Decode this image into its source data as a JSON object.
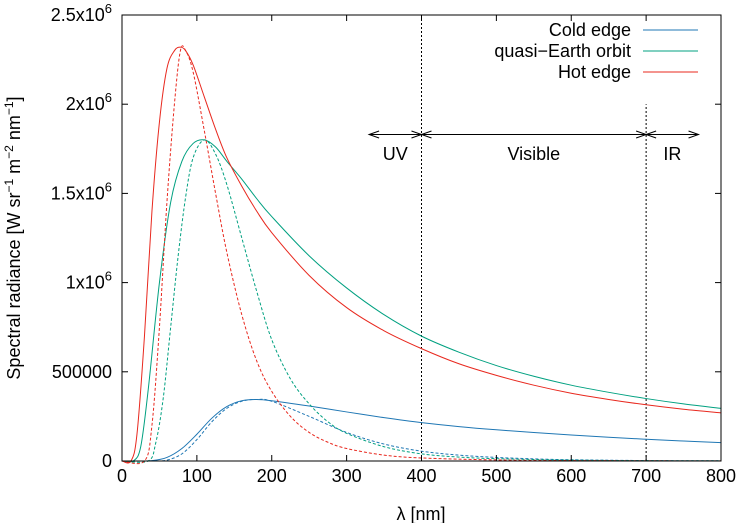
{
  "chart_data": {
    "type": "line",
    "xlabel": "λ [nm]",
    "ylabel": "Spectral radiance [W sr−1 m−2 nm−1]",
    "ylabel_parts": {
      "a": "Spectral radiance [W sr",
      "b": "−1",
      "c": " m",
      "d": "−2",
      "e": " nm",
      "f": "−1",
      "g": "]"
    },
    "xlim": [
      0,
      800
    ],
    "ylim": [
      0,
      2500000
    ],
    "x_ticks": [
      {
        "value": 0,
        "label": "0"
      },
      {
        "value": 100,
        "label": "100"
      },
      {
        "value": 200,
        "label": "200"
      },
      {
        "value": 300,
        "label": "300"
      },
      {
        "value": 400,
        "label": "400"
      },
      {
        "value": 500,
        "label": "500"
      },
      {
        "value": 600,
        "label": "600"
      },
      {
        "value": 700,
        "label": "700"
      },
      {
        "value": 800,
        "label": "800"
      }
    ],
    "y_ticks": [
      {
        "value": 0,
        "label": "0",
        "sup": ""
      },
      {
        "value": 500000,
        "label": "500000",
        "sup": ""
      },
      {
        "value": 1000000,
        "label": "1x10",
        "sup": "6"
      },
      {
        "value": 1500000,
        "label": "1.5x10",
        "sup": "6"
      },
      {
        "value": 2000000,
        "label": "2x10",
        "sup": "6"
      },
      {
        "value": 2500000,
        "label": "2.5x10",
        "sup": "6"
      }
    ],
    "legend_position": "top-right",
    "series": [
      {
        "name": "Cold edge",
        "color": "#1f77b4",
        "solid": {
          "x": [
            0,
            20,
            40,
            60,
            80,
            100,
            120,
            140,
            160,
            180,
            200,
            250,
            300,
            350,
            400,
            450,
            500,
            550,
            600,
            650,
            700,
            750,
            800
          ],
          "y": [
            0,
            0,
            2000,
            20000,
            70000,
            150000,
            240000,
            305000,
            338000,
            345000,
            338000,
            308000,
            275000,
            243000,
            215000,
            193000,
            175000,
            160000,
            146000,
            133000,
            122000,
            112000,
            103000
          ]
        },
        "dashed": {
          "x": [
            0,
            40,
            60,
            80,
            100,
            120,
            140,
            160,
            180,
            200,
            250,
            300,
            350,
            400,
            450,
            500,
            550,
            600,
            700,
            800
          ],
          "y": [
            0,
            0,
            5000,
            40000,
            120000,
            220000,
            295000,
            335000,
            345000,
            335000,
            250000,
            160000,
            95000,
            55000,
            33000,
            20000,
            12000,
            7000,
            2500,
            1000
          ]
        }
      },
      {
        "name": "quasi−Earth orbit",
        "color": "#00a080",
        "solid": {
          "x": [
            0,
            15,
            25,
            35,
            50,
            65,
            80,
            95,
            110,
            125,
            140,
            160,
            180,
            200,
            250,
            300,
            350,
            400,
            450,
            500,
            550,
            600,
            650,
            700,
            750,
            800
          ],
          "y": [
            0,
            0,
            80000,
            400000,
            1000000,
            1450000,
            1680000,
            1780000,
            1800000,
            1760000,
            1680000,
            1580000,
            1470000,
            1370000,
            1150000,
            970000,
            820000,
            700000,
            610000,
            535000,
            475000,
            425000,
            385000,
            350000,
            320000,
            295000
          ]
        },
        "dashed": {
          "x": [
            0,
            35,
            45,
            55,
            65,
            75,
            85,
            95,
            110,
            125,
            140,
            160,
            180,
            200,
            225,
            250,
            275,
            300,
            350,
            400,
            450,
            500,
            600,
            700,
            800
          ],
          "y": [
            0,
            0,
            100000,
            350000,
            750000,
            1150000,
            1480000,
            1700000,
            1800000,
            1720000,
            1550000,
            1250000,
            950000,
            680000,
            460000,
            320000,
            220000,
            155000,
            80000,
            40000,
            22000,
            13000,
            5000,
            2000,
            1000
          ]
        }
      },
      {
        "name": "Hot edge",
        "color": "#e8281e",
        "solid": {
          "x": [
            0,
            12,
            20,
            30,
            40,
            50,
            60,
            70,
            78,
            85,
            95,
            110,
            125,
            140,
            160,
            180,
            200,
            250,
            300,
            350,
            400,
            450,
            500,
            550,
            600,
            650,
            700,
            750,
            800
          ],
          "y": [
            0,
            0,
            150000,
            700000,
            1400000,
            1900000,
            2200000,
            2300000,
            2320000,
            2300000,
            2220000,
            2040000,
            1860000,
            1700000,
            1540000,
            1400000,
            1280000,
            1040000,
            860000,
            730000,
            630000,
            545000,
            480000,
            425000,
            380000,
            345000,
            315000,
            290000,
            270000
          ]
        },
        "dashed": {
          "x": [
            0,
            30,
            40,
            50,
            60,
            70,
            78,
            85,
            95,
            110,
            125,
            140,
            160,
            180,
            200,
            225,
            250,
            275,
            300,
            350,
            400,
            500,
            600,
            800
          ],
          "y": [
            0,
            0,
            200000,
            750000,
            1450000,
            2000000,
            2300000,
            2300000,
            2180000,
            1850000,
            1500000,
            1170000,
            820000,
            560000,
            390000,
            250000,
            160000,
            105000,
            70000,
            33000,
            17000,
            6000,
            2500,
            500
          ]
        }
      }
    ],
    "vertical_lines": [
      {
        "x": 400,
        "y_top": 2500000
      },
      {
        "x": 700,
        "y_top": 2000000
      }
    ],
    "band_arrows": {
      "y": 1830000,
      "label_y": 1720000,
      "bands": [
        {
          "label": "UV",
          "from": 330,
          "to": 400,
          "label_x": 365
        },
        {
          "label": "Visible",
          "from": 400,
          "to": 700,
          "label_x": 550
        },
        {
          "label": "IR",
          "from": 700,
          "to": 770,
          "label_x": 735
        }
      ]
    }
  }
}
